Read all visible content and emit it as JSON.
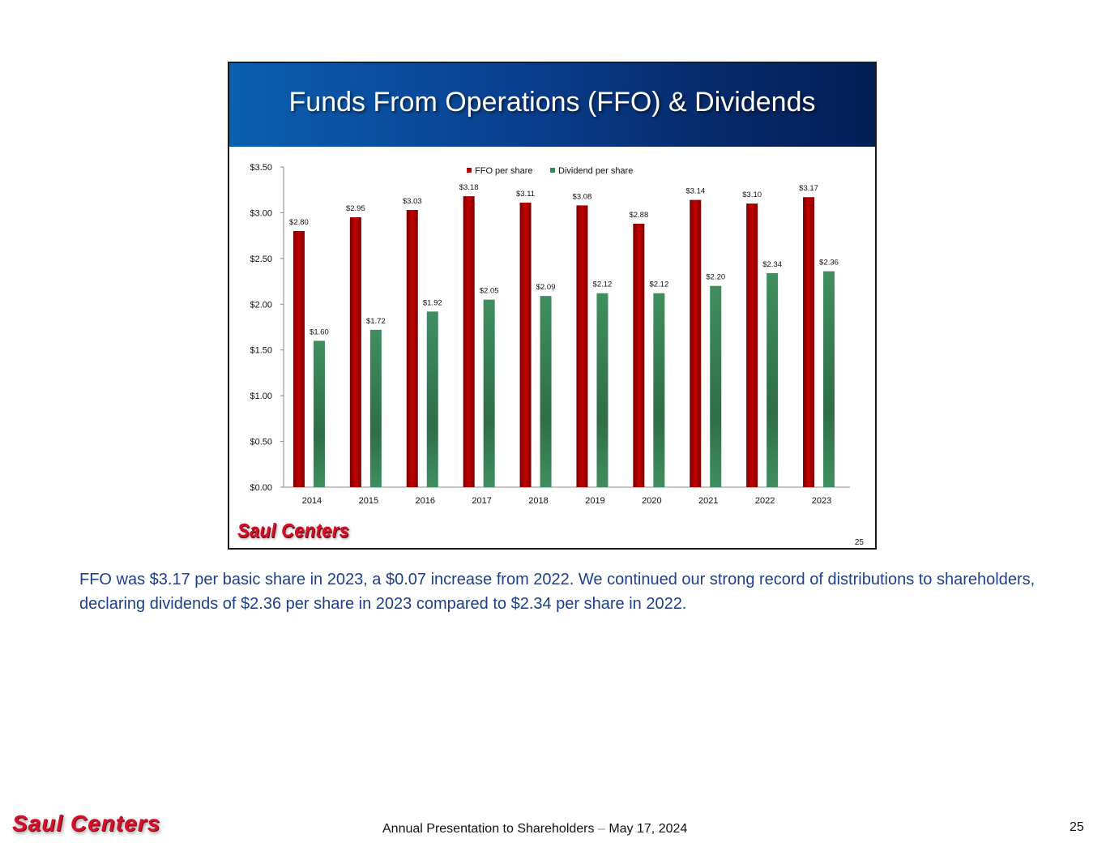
{
  "slide": {
    "title": "Funds From Operations (FFO) & Dividends",
    "logo_text": "Saul Centers",
    "page_number": "25"
  },
  "caption": "FFO was $3.17 per basic share in 2023, a $0.07 increase from 2022. We continued our strong record of distributions to shareholders, declaring dividends of $2.36 per share in 2023 compared to $2.34 per share in 2022.",
  "footer": {
    "logo_text": "Saul Centers",
    "text_before_dash": "Annual Presentation to Shareholders",
    "dash": "–",
    "text_after_dash": "May 17, 2024",
    "page_number": "25"
  },
  "chart_data": {
    "type": "bar",
    "categories": [
      "2014",
      "2015",
      "2016",
      "2017",
      "2018",
      "2019",
      "2020",
      "2021",
      "2022",
      "2023"
    ],
    "series": [
      {
        "name": "FFO per share",
        "color": "#c00000",
        "values": [
          2.8,
          2.95,
          3.03,
          3.18,
          3.11,
          3.08,
          2.88,
          3.14,
          3.1,
          3.17
        ],
        "labels": [
          "$2.80",
          "$2.95",
          "$3.03",
          "$3.18",
          "$3.11",
          "$3.08",
          "$2.88",
          "$3.14",
          "$3.10",
          "$3.17"
        ]
      },
      {
        "name": "Dividend per share",
        "color": "#3a8a5a",
        "values": [
          1.6,
          1.72,
          1.92,
          2.05,
          2.09,
          2.12,
          2.12,
          2.2,
          2.34,
          2.36
        ],
        "labels": [
          "$1.60",
          "$1.72",
          "$1.92",
          "$2.05",
          "$2.09",
          "$2.12",
          "$2.12",
          "$2.20",
          "$2.34",
          "$2.36"
        ]
      }
    ],
    "yticks": [
      "$0.00",
      "$0.50",
      "$1.00",
      "$1.50",
      "$2.00",
      "$2.50",
      "$3.00",
      "$3.50"
    ],
    "ylim": [
      0,
      3.5
    ],
    "legend_position": "top",
    "grid": false
  }
}
